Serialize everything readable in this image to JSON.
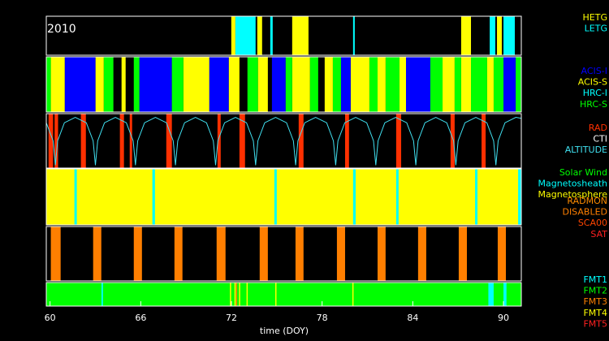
{
  "chart_data": {
    "type": "timeline",
    "annotation": "2010",
    "xlabel": "time (DOY)",
    "xlim": [
      59.75,
      91.18
    ],
    "xticks": [
      60,
      66,
      72,
      78,
      84,
      90
    ],
    "panels": [
      {
        "series": [
          {
            "name": "HETG",
            "color": "#ffff00",
            "intervals": [
              [
                71.99,
                72.26
              ],
              [
                73.71,
                74.03
              ],
              [
                76.02,
                77.1
              ],
              [
                87.2,
                87.85
              ],
              [
                89.57,
                89.89
              ]
            ]
          },
          {
            "name": "LETG",
            "color": "#00ffff",
            "intervals": [
              [
                72.26,
                73.6
              ],
              [
                74.57,
                74.73
              ],
              [
                80.05,
                80.16
              ],
              [
                89.09,
                89.46
              ],
              [
                90.0,
                90.75
              ]
            ]
          }
        ]
      },
      {
        "series": [
          {
            "name": "ACIS-I",
            "color": "#0000ff",
            "intervals": [
              [
                60.97,
                63.01
              ],
              [
                65.91,
                68.06
              ],
              [
                70.54,
                71.83
              ],
              [
                74.68,
                75.59
              ],
              [
                79.25,
                79.89
              ],
              [
                83.55,
                85.16
              ],
              [
                90.0,
                90.81
              ]
            ]
          },
          {
            "name": "ACIS-S",
            "color": "#ffff00",
            "intervals": [
              [
                60.05,
                60.97
              ],
              [
                63.01,
                63.55
              ],
              [
                64.73,
                65.0
              ],
              [
                68.82,
                70.54
              ],
              [
                71.83,
                72.53
              ],
              [
                73.76,
                74.41
              ],
              [
                76.02,
                77.2
              ],
              [
                78.17,
                78.71
              ],
              [
                79.89,
                81.13
              ],
              [
                81.67,
                82.2
              ],
              [
                83.12,
                83.55
              ],
              [
                85.97,
                86.77
              ],
              [
                87.2,
                87.85
              ],
              [
                88.92,
                89.35
              ]
            ]
          },
          {
            "name": "HRC-I",
            "color": "#00ffff",
            "intervals": []
          },
          {
            "name": "HRC-S",
            "color": "#00ff00",
            "intervals": [
              [
                59.75,
                60.05
              ],
              [
                63.55,
                64.19
              ],
              [
                65.54,
                65.91
              ],
              [
                68.06,
                68.82
              ],
              [
                73.06,
                73.76
              ],
              [
                75.59,
                76.02
              ],
              [
                77.2,
                77.74
              ],
              [
                78.71,
                79.25
              ],
              [
                81.13,
                81.67
              ],
              [
                82.2,
                83.12
              ],
              [
                85.16,
                85.97
              ],
              [
                86.77,
                87.2
              ],
              [
                87.85,
                88.92
              ],
              [
                89.35,
                90.0
              ],
              [
                90.81,
                91.18
              ]
            ]
          }
        ]
      },
      {
        "ylim": [
          0,
          150
        ],
        "series": [
          {
            "name": "RAD",
            "color": "#ff3000",
            "intervals": [
              [
                59.9,
                60.2
              ],
              [
                60.3,
                60.53
              ],
              [
                62.04,
                62.37
              ],
              [
                64.62,
                64.89
              ],
              [
                65.27,
                65.43
              ],
              [
                67.69,
                68.06
              ],
              [
                71.08,
                71.29
              ],
              [
                72.53,
                72.9
              ],
              [
                76.45,
                76.77
              ],
              [
                79.52,
                79.78
              ],
              [
                82.9,
                83.23
              ],
              [
                86.5,
                86.77
              ],
              [
                88.55,
                88.82
              ]
            ]
          },
          {
            "name": "CTI",
            "color": "#ffffff",
            "intervals": []
          },
          {
            "name": "ALTITUDE",
            "color": "#40e0f0",
            "x": [
              59.75,
              60.2,
              60.35,
              60.5,
              60.95,
              61.67,
              62.4,
              62.85,
              63.0,
              63.15,
              63.6,
              64.32,
              65.05,
              65.5,
              65.65,
              65.8,
              66.25,
              66.97,
              67.7,
              68.15,
              68.3,
              68.45,
              68.9,
              69.62,
              70.35,
              70.8,
              70.95,
              71.1,
              71.55,
              72.27,
              73.0,
              73.45,
              73.6,
              73.75,
              74.2,
              74.92,
              75.65,
              76.1,
              76.25,
              76.4,
              76.85,
              77.57,
              78.3,
              78.75,
              78.9,
              79.05,
              79.5,
              80.22,
              80.95,
              81.4,
              81.55,
              81.7,
              82.15,
              82.87,
              83.6,
              84.05,
              84.2,
              84.35,
              84.8,
              85.52,
              86.25,
              86.7,
              86.85,
              87.0,
              87.45,
              88.17,
              88.9,
              89.35,
              89.5,
              89.65,
              90.1,
              90.82,
              91.18
            ],
            "values": [
              125,
              75,
              8,
              75,
              125,
              140,
              125,
              75,
              8,
              75,
              125,
              140,
              125,
              75,
              8,
              75,
              125,
              140,
              125,
              75,
              8,
              75,
              125,
              140,
              125,
              75,
              8,
              75,
              125,
              140,
              125,
              75,
              8,
              75,
              125,
              140,
              125,
              75,
              8,
              75,
              125,
              140,
              125,
              75,
              8,
              75,
              125,
              140,
              125,
              75,
              8,
              75,
              125,
              140,
              125,
              75,
              8,
              75,
              125,
              140,
              125,
              75,
              8,
              75,
              125,
              140,
              125,
              75,
              8,
              75,
              125,
              140,
              137
            ]
          }
        ]
      },
      {
        "series": [
          {
            "name": "Solar Wind",
            "color": "#00ff00",
            "intervals": []
          },
          {
            "name": "Magnetosheath",
            "color": "#00ffff",
            "intervals": [
              [
                61.61,
                61.77
              ],
              [
                66.77,
                66.94
              ],
              [
                74.84,
                75.0
              ],
              [
                80.05,
                80.22
              ],
              [
                82.9,
                83.06
              ],
              [
                88.12,
                88.28
              ],
              [
                90.97,
                91.18
              ]
            ]
          },
          {
            "name": "Magnetosphere",
            "color": "#ffff00",
            "intervals": [
              [
                59.75,
                91.18
              ]
            ]
          }
        ]
      },
      {
        "series": [
          {
            "name": "RADMON",
            "color": "#ff8c00",
            "intervals": []
          },
          {
            "name": "DISABLED",
            "color": "#ff7f00",
            "intervals": [
              [
                60.05,
                60.7
              ],
              [
                62.85,
                63.39
              ],
              [
                65.54,
                66.08
              ],
              [
                68.23,
                68.76
              ],
              [
                71.02,
                71.61
              ],
              [
                73.87,
                74.41
              ],
              [
                76.24,
                76.77
              ],
              [
                78.98,
                79.52
              ],
              [
                81.67,
                82.2
              ],
              [
                84.35,
                84.89
              ],
              [
                87.04,
                87.58
              ],
              [
                89.62,
                90.16
              ]
            ]
          },
          {
            "name": "SCA00",
            "color": "#ff4500",
            "intervals": []
          },
          {
            "name": "SAT",
            "color": "#ff2020",
            "intervals": []
          }
        ]
      },
      {
        "series": [
          {
            "name": "FMT1",
            "color": "#00ffff",
            "intervals": [
              [
                63.4,
                63.5
              ],
              [
                89.0,
                89.35
              ],
              [
                90.0,
                90.2
              ]
            ]
          },
          {
            "name": "FMT2",
            "color": "#00ff00",
            "intervals": [
              [
                59.75,
                91.18
              ]
            ]
          },
          {
            "name": "FMT3",
            "color": "#ff8000",
            "intervals": [
              [
                72.3,
                72.35
              ]
            ]
          },
          {
            "name": "FMT4",
            "color": "#ffff00",
            "intervals": [
              [
                71.9,
                71.95
              ],
              [
                72.2,
                72.25
              ],
              [
                72.5,
                72.55
              ],
              [
                73.0,
                73.05
              ],
              [
                74.9,
                74.95
              ],
              [
                80.0,
                80.05
              ]
            ]
          },
          {
            "name": "FMT5",
            "color": "#ff2020",
            "intervals": []
          }
        ]
      }
    ]
  }
}
